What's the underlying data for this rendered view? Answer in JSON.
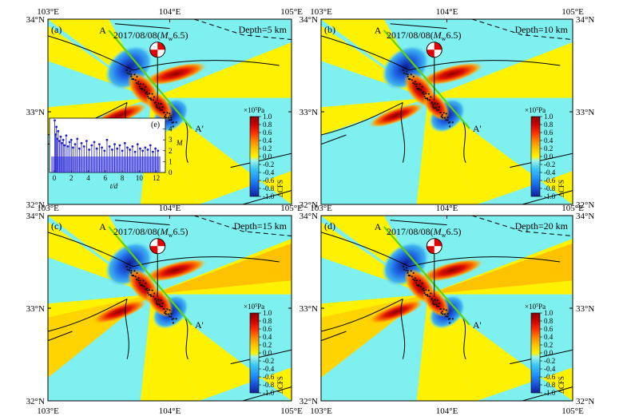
{
  "figure": {
    "panels": [
      {
        "letter": "(a)",
        "event": "2017/08/08(",
        "mag_m": "M",
        "mag_sub": "w",
        "mag_val": "6.5)",
        "depth": "Depth=5 km",
        "show_inset": true
      },
      {
        "letter": "(b)",
        "event": "2017/08/08(",
        "mag_m": "M",
        "mag_sub": "w",
        "mag_val": "6.5)",
        "depth": "Depth=10 km",
        "show_inset": false
      },
      {
        "letter": "(c)",
        "event": "2017/08/08(",
        "mag_m": "M",
        "mag_sub": "w",
        "mag_val": "6.5)",
        "depth": "Depth=15 km",
        "show_inset": false
      },
      {
        "letter": "(d)",
        "event": "2017/08/08(",
        "mag_m": "M",
        "mag_sub": "w",
        "mag_val": "6.5)",
        "depth": "Depth=20 km",
        "show_inset": false
      }
    ],
    "axes": {
      "x_ticks": [
        "103°E",
        "104°E",
        "105°E"
      ],
      "y_ticks": [
        "34°N",
        "33°N",
        "32°N"
      ]
    },
    "profile": {
      "start": "A",
      "end": "A'"
    },
    "colorbar": {
      "unit_prefix": "×10",
      "unit_exp": "5",
      "unit_suffix": "Pa",
      "ticks": [
        "1.0",
        "0.8",
        "0.6",
        "0.4",
        "0.2",
        "0.0",
        "-0.2",
        "-0.4",
        "-0.6",
        "-0.8",
        "-1.0"
      ],
      "label": "ΔCFS",
      "colors": [
        "#8b0000",
        "#cc0000",
        "#ff2a00",
        "#ff8000",
        "#ffc000",
        "#fff200",
        "#7ff0f0",
        "#40c8f0",
        "#1e90ff",
        "#1a4fd6",
        "#10209a"
      ]
    },
    "inset": {
      "letter": "(e)",
      "x_ticks": [
        "0",
        "2",
        "4",
        "6",
        "8",
        "10",
        "12"
      ],
      "y_ticks": [
        "5",
        "4",
        "3",
        "2",
        "1",
        "0"
      ],
      "xlabel": "t/d",
      "ylabel": "M",
      "series": {
        "t": [
          0.05,
          0.15,
          0.25,
          0.35,
          0.45,
          0.6,
          0.75,
          0.9,
          1.05,
          1.2,
          1.4,
          1.6,
          1.8,
          2.0,
          2.2,
          2.45,
          2.7,
          2.95,
          3.2,
          3.5,
          3.8,
          4.1,
          4.4,
          4.7,
          5.0,
          5.3,
          5.6,
          5.9,
          6.2,
          6.5,
          6.8,
          7.1,
          7.4,
          7.7,
          8.0,
          8.3,
          8.6,
          8.9,
          9.2,
          9.5,
          9.8,
          10.1,
          10.4,
          10.7,
          11.0,
          11.3,
          11.6,
          11.9,
          12.2
        ],
        "m": [
          4.8,
          3.5,
          4.2,
          3.1,
          3.8,
          2.9,
          3.3,
          2.7,
          3.0,
          2.5,
          3.4,
          2.4,
          2.8,
          3.0,
          2.3,
          2.6,
          3.1,
          2.2,
          2.7,
          2.4,
          2.9,
          2.1,
          2.5,
          2.8,
          2.2,
          2.6,
          2.3,
          2.0,
          3.0,
          2.4,
          2.1,
          2.6,
          2.2,
          2.5,
          2.0,
          2.7,
          2.3,
          2.1,
          2.4,
          1.9,
          2.6,
          2.2,
          2.0,
          2.3,
          2.1,
          2.5,
          1.9,
          2.2,
          2.0
        ]
      }
    }
  }
}
